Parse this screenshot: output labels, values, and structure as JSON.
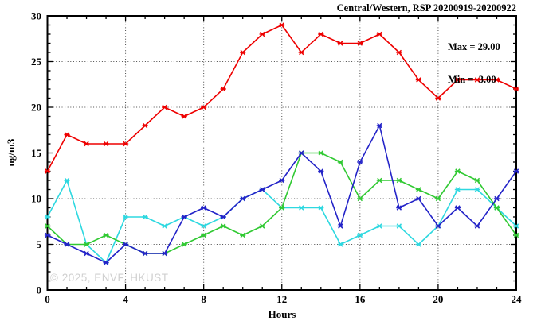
{
  "header": {
    "title": "Central/Western, RSP 20200919-20200922"
  },
  "annotations": {
    "max_label": "Max = 29.00",
    "min_label": "Min =  3.00"
  },
  "watermark": "© 2025, ENVF, HKUST",
  "chart_data": {
    "type": "line",
    "title": "Central/Western, RSP 20200919-20200922",
    "xlabel": "Hours",
    "ylabel": "ug/m3",
    "xlim": [
      0,
      24
    ],
    "ylim": [
      0,
      30
    ],
    "x_major_ticks": [
      0,
      4,
      8,
      12,
      16,
      20,
      24
    ],
    "y_major_ticks": [
      0,
      5,
      10,
      15,
      20,
      25,
      30
    ],
    "x_minor_step": 1,
    "y_minor_step": 1,
    "grid": "dotted lines at major ticks, ticks on all four borders",
    "legend": "none",
    "marker": "asterisk",
    "stats": {
      "max": 29.0,
      "min": 3.0
    },
    "x": [
      0,
      1,
      2,
      3,
      4,
      5,
      6,
      7,
      8,
      9,
      10,
      11,
      12,
      13,
      14,
      15,
      16,
      17,
      18,
      19,
      20,
      21,
      22,
      23,
      24
    ],
    "series": [
      {
        "name": "red",
        "color": "#ee0000",
        "values": [
          13,
          17,
          16,
          16,
          16,
          18,
          20,
          19,
          20,
          22,
          26,
          28,
          29,
          26,
          28,
          27,
          27,
          28,
          26,
          23,
          21,
          23,
          23,
          23,
          22
        ]
      },
      {
        "name": "cyan",
        "color": "#2ed8e0",
        "values": [
          8,
          12,
          5,
          3,
          8,
          8,
          7,
          8,
          7,
          8,
          10,
          11,
          9,
          9,
          9,
          5,
          6,
          7,
          7,
          5,
          7,
          11,
          11,
          9,
          7
        ]
      },
      {
        "name": "green",
        "color": "#30c932",
        "values": [
          7,
          5,
          5,
          6,
          5,
          4,
          4,
          5,
          6,
          7,
          6,
          7,
          9,
          15,
          15,
          14,
          10,
          12,
          12,
          11,
          10,
          13,
          12,
          9,
          6
        ]
      },
      {
        "name": "blue",
        "color": "#2323c8",
        "values": [
          6,
          5,
          4,
          3,
          5,
          4,
          4,
          8,
          9,
          8,
          10,
          11,
          12,
          15,
          13,
          7,
          14,
          18,
          9,
          10,
          7,
          9,
          7,
          10,
          13
        ]
      }
    ]
  }
}
